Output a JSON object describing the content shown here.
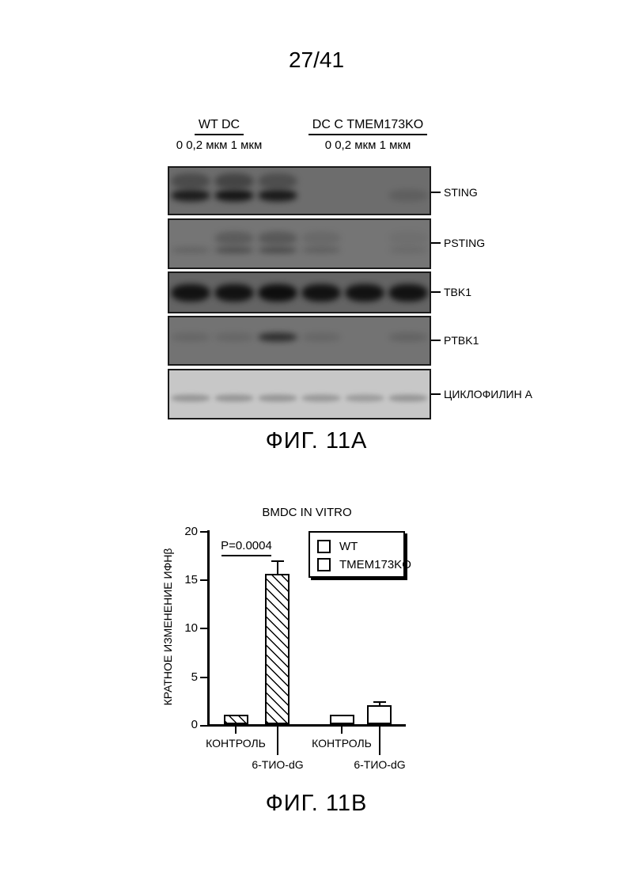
{
  "page": {
    "number": "27/41"
  },
  "fig_a": {
    "caption": "ФИГ. 11А",
    "groups": [
      {
        "label": "WT DC",
        "doses": "0 0,2 мкм 1 мкм"
      },
      {
        "label": "DC С TMEM173KO",
        "doses": "0 0,2 мкм 1 мкм"
      }
    ],
    "blots": [
      {
        "label": "STING",
        "bg": "#6d6d6d",
        "blur": 4,
        "band_color": "#161616",
        "band_y": 60,
        "band_h": 15,
        "bands": [
          0.92,
          1,
          0.95,
          0,
          0,
          0.16
        ],
        "band2_color": "#2f2f2f",
        "band2_y": 30,
        "band2_h": 20,
        "bands2": [
          0.55,
          0.65,
          0.5,
          0,
          0,
          0
        ]
      },
      {
        "label": "PSTING",
        "bg": "#757575",
        "blur": 4,
        "band_color": "#262626",
        "band_y": 63,
        "band_h": 8,
        "bands": [
          0.22,
          0.5,
          0.55,
          0.28,
          0,
          0.14
        ],
        "band2_color": "#3a3a3a",
        "band2_y": 38,
        "band2_h": 17,
        "bands2": [
          0,
          0.42,
          0.48,
          0.2,
          0,
          0.1
        ]
      },
      {
        "label": "TBK1",
        "bg": "#646464",
        "blur": 4,
        "band_color": "#0e0e0e",
        "band_y": 52,
        "band_h": 22,
        "bands": [
          0.95,
          0.95,
          1,
          0.95,
          0.95,
          0.95
        ]
      },
      {
        "label": "PTBK1",
        "bg": "#737373",
        "blur": 4,
        "band_color": "#1c1c1c",
        "band_y": 42,
        "band_h": 11,
        "bands": [
          0.14,
          0.14,
          0.8,
          0.14,
          0,
          0.18
        ]
      },
      {
        "label": "ЦИКЛОФИЛИН А",
        "bg": "#c7c7c7",
        "blur": 3,
        "band_color": "#8e8e8e",
        "band_y": 58,
        "band_h": 9,
        "bands": [
          0.85,
          0.85,
          0.85,
          0.8,
          0.75,
          0.85
        ]
      }
    ]
  },
  "fig_b": {
    "caption": "ФИГ. 11В"
  },
  "chart_data": {
    "type": "bar",
    "title": "BMDC IN VITRO",
    "ylabel": "КРАТНОЕ ИЗМЕНЕНИЕ ИФНβ",
    "xlabel": "",
    "ylim": [
      0,
      20
    ],
    "yticks": [
      0,
      5,
      10,
      15,
      20
    ],
    "grid": false,
    "legend_position": "upper right",
    "annotation": "P=0.0004",
    "legend": [
      {
        "label": "WT",
        "hatched": true
      },
      {
        "label": "TMEM173KO",
        "hatched": false
      }
    ],
    "bars": [
      {
        "series": "WT",
        "category": "КОНТРОЛЬ",
        "value": 1.0,
        "error": 0,
        "hatched": true
      },
      {
        "series": "WT",
        "category": "6-ТИО-dG",
        "value": 15.5,
        "error": 1.4,
        "hatched": true
      },
      {
        "series": "TMEM173KO",
        "category": "КОНТРОЛЬ",
        "value": 1.0,
        "error": 0,
        "hatched": false
      },
      {
        "series": "TMEM173KO",
        "category": "6-ТИО-dG",
        "value": 2.0,
        "error": 0.4,
        "hatched": false
      }
    ]
  }
}
